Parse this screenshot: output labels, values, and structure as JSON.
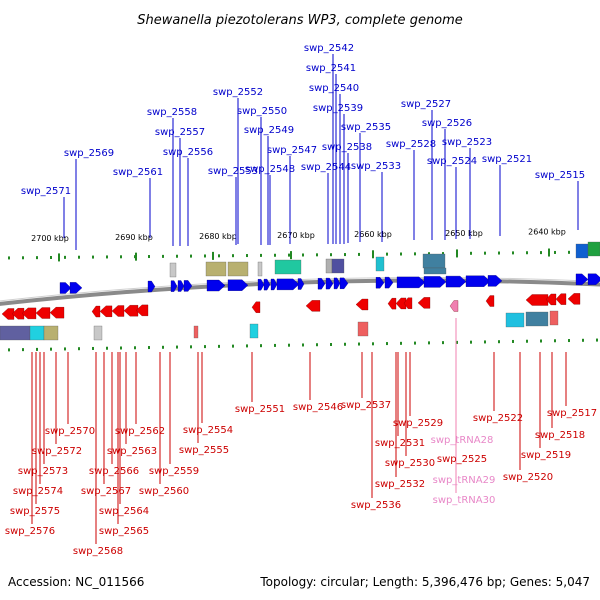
{
  "title": "Shewanella piezotolerans WP3, complete genome",
  "footer": {
    "accession": "Accession: NC_011566",
    "summary": "Topology: circular; Length: 5,396,476 bp; Genes: 5,047"
  },
  "scale_ticks": [
    "2700 kbp",
    "2690 kbp",
    "2680 kbp",
    "2670 kbp",
    "2660 kbp",
    "2650 kbp",
    "2640 kbp"
  ],
  "colors": {
    "forward_gene": "#0000ee",
    "reverse_gene": "#ee0000",
    "trna": "#f080b0",
    "backbone": "#888888",
    "ticks": "#228822"
  },
  "top_labels": [
    "swp_2542",
    "swp_2541",
    "swp_2540",
    "swp_2552",
    "swp_2539",
    "swp_2527",
    "swp_2558",
    "swp_2550",
    "swp_2526",
    "swp_2535",
    "swp_2557",
    "swp_2549",
    "swp_2528",
    "swp_2523",
    "swp_2556",
    "swp_2538",
    "swp_2569",
    "swp_2547",
    "swp_2524",
    "swp_2521",
    "swp_2561",
    "swp_2553",
    "swp_2548",
    "swp_2544",
    "swp_2533",
    "swp_2515",
    "swp_2571"
  ],
  "bottom_labels": [
    "swp_2551",
    "swp_2546",
    "swp_2537",
    "swp_2517",
    "swp_2522",
    "swp_2529",
    "swp_2554",
    "swp_2518",
    "swp_2570",
    "swp_2562",
    "swp_2531",
    "swp_2572",
    "swp_2563",
    "swp_2555",
    "swp_2519",
    "swp_2530",
    "swp_2525",
    "swp_2573",
    "swp_2566",
    "swp_2559",
    "swp_2520",
    "swp_2532",
    "swp_2574",
    "swp_2567",
    "swp_2560",
    "swp_2564",
    "swp_2536",
    "swp_2575",
    "swp_2565",
    "swp_2576",
    "swp_2568"
  ],
  "trna_labels": [
    "swp_tRNA28",
    "swp_tRNA29",
    "swp_tRNA30"
  ]
}
